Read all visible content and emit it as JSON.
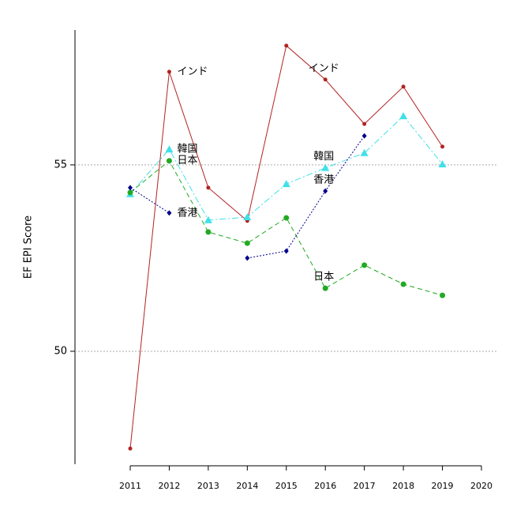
{
  "chart_data": {
    "type": "line",
    "y_label": "EF EPI Score",
    "x": [
      2011,
      2012,
      2013,
      2014,
      2015,
      2016,
      2017,
      2018,
      2019
    ],
    "xlim": [
      2011,
      2020
    ],
    "xticks": [
      2011,
      2012,
      2013,
      2014,
      2015,
      2016,
      2017,
      2018,
      2019,
      2020
    ],
    "ylim": [
      46.97,
      58.62
    ],
    "yticks": [
      50,
      55
    ],
    "grid": true,
    "series": [
      {
        "name": "インド",
        "color": "#b22222",
        "dash": "solid",
        "marker": "circle-small",
        "labels_at": [
          2012,
          2016
        ],
        "values": [
          47.39,
          57.5,
          54.39,
          53.5,
          58.2,
          57.29,
          56.1,
          57.1,
          55.49
        ]
      },
      {
        "name": "韓国",
        "color": "#40e0e8",
        "dash": "dotdash",
        "marker": "triangle",
        "labels_at": [
          2012,
          2016
        ],
        "values": [
          54.22,
          55.42,
          53.52,
          53.6,
          54.49,
          54.92,
          55.32,
          56.31,
          55.02
        ]
      },
      {
        "name": "日本",
        "color": "#22aa22",
        "dash": "dashed",
        "marker": "circle",
        "labels_at": [
          2012,
          2016
        ],
        "values": [
          54.26,
          55.11,
          53.2,
          52.9,
          53.58,
          51.69,
          52.31,
          51.8,
          51.5
        ]
      },
      {
        "name": "香港",
        "color": "#00008b",
        "dash": "dotted",
        "marker": "diamond",
        "labels_at": [
          2012,
          2016
        ],
        "values": [
          54.39,
          53.71,
          null,
          52.5,
          52.69,
          54.3,
          55.78,
          null,
          null
        ]
      }
    ]
  }
}
